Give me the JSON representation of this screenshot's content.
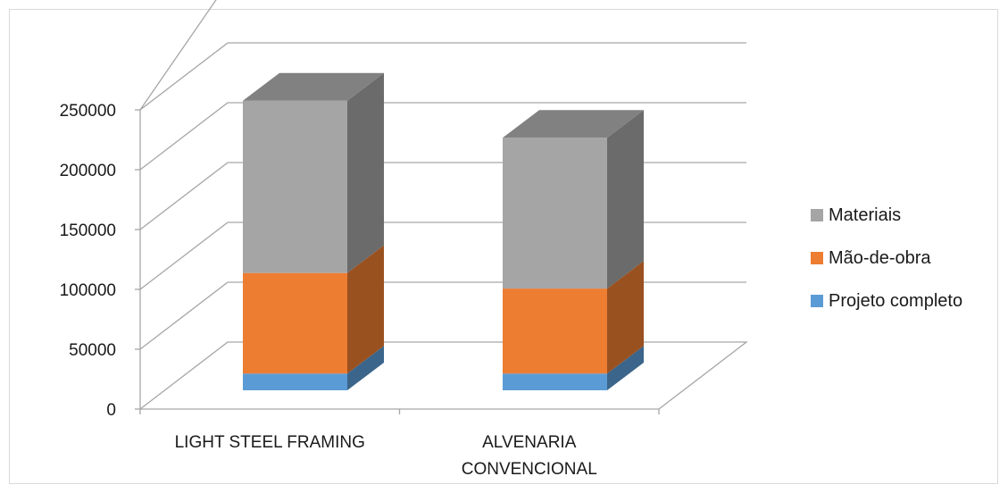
{
  "chart_data": {
    "type": "bar",
    "stacked": true,
    "three_d": true,
    "categories": [
      [
        "LIGHT STEEL FRAMING"
      ],
      [
        "ALVENARIA",
        "CONVENCIONAL"
      ]
    ],
    "series": [
      {
        "name": "Projeto completo",
        "values": [
          14000,
          14000
        ],
        "color": "#5b9bd5"
      },
      {
        "name": "Mão-de-obra",
        "values": [
          84000,
          71000
        ],
        "color": "#ed7d31"
      },
      {
        "name": "Materiais",
        "values": [
          144000,
          126000
        ],
        "color": "#a5a5a5"
      }
    ],
    "y_ticks": [
      0,
      50000,
      100000,
      150000,
      200000,
      250000
    ],
    "ylim": [
      0,
      250000
    ],
    "grid": true,
    "legend_position": "right",
    "legend_order": [
      "Materiais",
      "Mão-de-obra",
      "Projeto completo"
    ]
  }
}
